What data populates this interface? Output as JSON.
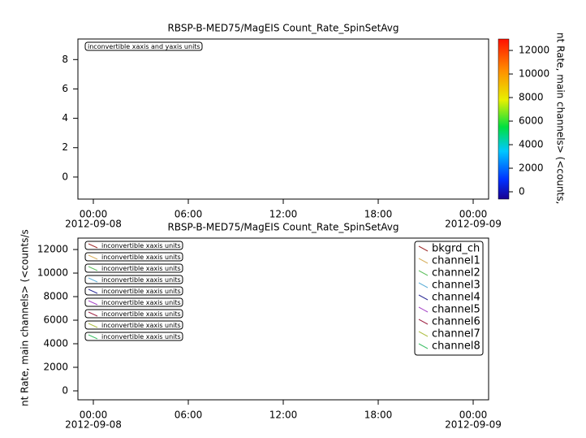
{
  "chart_data": [
    {
      "type": "spectrogram",
      "title": "RBSP-B-MED75/MagEIS  Count_Rate_SpinSetAvg",
      "annotations": [
        "inconvertible xaxis and yaxis units"
      ],
      "xlim": [
        "2012-09-07T23:01:30",
        "2012-09-09T00:58:30"
      ],
      "xticks": [
        {
          "value": "2012-09-08T00:00",
          "label": "00:00"
        },
        {
          "value": "2012-09-08T06:00",
          "label": "06:00"
        },
        {
          "value": "2012-09-08T12:00",
          "label": "12:00"
        },
        {
          "value": "2012-09-08T18:00",
          "label": "18:00"
        },
        {
          "value": "2012-09-09T00:00",
          "label": "00:00"
        }
      ],
      "xtick_dates": [
        {
          "value": "2012-09-08T00:00",
          "label": "2012-09-08"
        },
        {
          "value": "2012-09-09T00:00",
          "label": "2012-09-09"
        }
      ],
      "ylim": [
        -1.5,
        9.4
      ],
      "yticks": [
        0,
        2,
        4,
        6,
        8
      ],
      "zlim": [
        -620,
        12970
      ],
      "zticks": [
        0,
        2000,
        4000,
        6000,
        8000,
        10000,
        12000
      ],
      "zlabel": "nt Rate, main channels> (<counts,",
      "colormap": "rainbow"
    },
    {
      "type": "line",
      "title": "RBSP-B-MED75/MagEIS  Count_Rate_SpinSetAvg",
      "ylabel": "nt Rate, main channels> (<counts/s",
      "annotations": [
        "inconvertible xaxis units",
        "inconvertible xaxis units",
        "inconvertible xaxis units",
        "inconvertible xaxis units",
        "inconvertible xaxis units",
        "inconvertible xaxis units",
        "inconvertible xaxis units",
        "inconvertible xaxis units",
        "inconvertible xaxis units"
      ],
      "xlim": [
        "2012-09-07T23:01:30",
        "2012-09-09T00:58:30"
      ],
      "xticks": [
        {
          "value": "2012-09-08T00:00",
          "label": "00:00"
        },
        {
          "value": "2012-09-08T06:00",
          "label": "06:00"
        },
        {
          "value": "2012-09-08T12:00",
          "label": "12:00"
        },
        {
          "value": "2012-09-08T18:00",
          "label": "18:00"
        },
        {
          "value": "2012-09-09T00:00",
          "label": "00:00"
        }
      ],
      "xtick_dates": [
        {
          "value": "2012-09-08T00:00",
          "label": "2012-09-08"
        },
        {
          "value": "2012-09-09T00:00",
          "label": "2012-09-09"
        }
      ],
      "ylim": [
        -760,
        12970
      ],
      "yticks": [
        0,
        2000,
        4000,
        6000,
        8000,
        10000,
        12000
      ],
      "legend": "upper right",
      "x": [],
      "series": [
        {
          "name": "bkgrd_ch",
          "color": "#a03030",
          "values": []
        },
        {
          "name": "channel1",
          "color": "#d8b060",
          "values": []
        },
        {
          "name": "channel2",
          "color": "#60c060",
          "values": []
        },
        {
          "name": "channel3",
          "color": "#60b0d8",
          "values": []
        },
        {
          "name": "channel4",
          "color": "#303098",
          "values": []
        },
        {
          "name": "channel5",
          "color": "#a848c8",
          "values": []
        },
        {
          "name": "channel6",
          "color": "#a02848",
          "values": []
        },
        {
          "name": "channel7",
          "color": "#b0c048",
          "values": []
        },
        {
          "name": "channel8",
          "color": "#40c068",
          "values": []
        }
      ]
    }
  ]
}
